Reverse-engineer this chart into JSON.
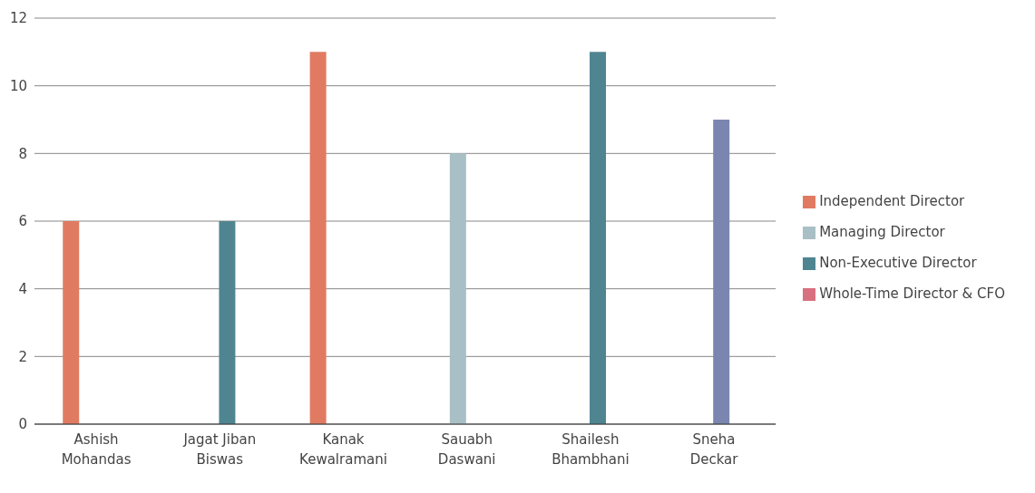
{
  "chart_data": {
    "type": "bar",
    "categories": [
      "Ashish Mohandas",
      "Jagat Jiban Biswas",
      "Kanak Kewalramani",
      "Sauabh Daswani",
      "Shailesh Bhambhani",
      "Sneha Deckar"
    ],
    "series": [
      {
        "name": "Independent Director",
        "color": "#e07b62",
        "values": [
          6,
          null,
          11,
          null,
          null,
          null
        ]
      },
      {
        "name": "Managing Director",
        "color": "#a9bfc6",
        "values": [
          null,
          null,
          null,
          8,
          null,
          null
        ]
      },
      {
        "name": "Non-Executive Director",
        "color": "#4f8591",
        "colors": [
          "#4f8591",
          "#4f8591",
          "#4f8591",
          "#4f8591",
          "#4f8591",
          "#7a86b0"
        ],
        "values": [
          null,
          6,
          null,
          null,
          11,
          9
        ]
      },
      {
        "name": "Whole-Time Director & CFO",
        "color": "#d9707f",
        "values": [
          null,
          null,
          null,
          null,
          null,
          null
        ]
      }
    ],
    "ylim": [
      0,
      12
    ],
    "yticks": [
      0,
      2,
      4,
      6,
      8,
      10,
      12
    ],
    "grid": "y",
    "legend": "right"
  }
}
